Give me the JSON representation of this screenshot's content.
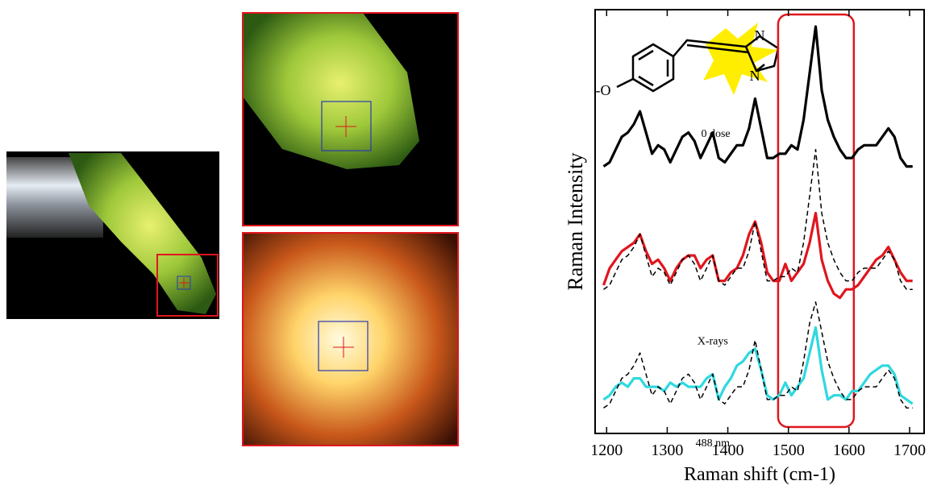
{
  "chart_data": {
    "type": "line",
    "ylabel": "Raman Intensity",
    "xlabel": "Raman shift (cm-1)",
    "xlim": [
      1181,
      1724
    ],
    "ylim": [
      0,
      100
    ],
    "xticks": [
      1200,
      1300,
      1400,
      1500,
      1600,
      1700
    ],
    "highlight_range": [
      1483,
      1608
    ],
    "highlight_color": "#e0161d",
    "structure_labels": [
      "N",
      "N",
      "-O"
    ],
    "x": [
      1195,
      1205,
      1215,
      1225,
      1235,
      1245,
      1255,
      1265,
      1275,
      1285,
      1295,
      1305,
      1315,
      1325,
      1335,
      1345,
      1355,
      1365,
      1375,
      1385,
      1395,
      1405,
      1415,
      1425,
      1435,
      1445,
      1455,
      1465,
      1475,
      1485,
      1495,
      1505,
      1515,
      1525,
      1535,
      1545,
      1555,
      1565,
      1575,
      1585,
      1595,
      1605,
      1615,
      1625,
      1635,
      1645,
      1655,
      1665,
      1675,
      1685,
      1695,
      1705
    ],
    "series": [
      {
        "name": "0 dose",
        "color": "#000000",
        "dashed": false,
        "values": [
          63,
          64,
          67,
          70,
          71,
          73,
          76,
          71,
          66,
          68,
          67,
          64,
          67,
          70,
          71,
          69,
          65,
          68,
          71,
          65,
          64,
          66,
          68,
          68,
          72,
          79,
          72,
          65,
          65,
          66,
          66,
          68,
          67,
          74,
          85,
          96,
          81,
          74,
          70,
          67,
          65,
          65,
          67,
          68,
          68,
          68,
          70,
          72,
          70,
          65,
          63,
          63
        ]
      },
      {
        "name": "X-rays",
        "color": "#e0161d",
        "dashed": false,
        "values": [
          35,
          39,
          41,
          43,
          44,
          45,
          47,
          43,
          40,
          41,
          39,
          36,
          39,
          41,
          42,
          42,
          39,
          41,
          42,
          36,
          36,
          38,
          39,
          42,
          47,
          50,
          45,
          38,
          36,
          36,
          40,
          36,
          38,
          40,
          45,
          52,
          41,
          36,
          33,
          32,
          34,
          34,
          35,
          37,
          39,
          41,
          42,
          44,
          41,
          38,
          36,
          36
        ]
      },
      {
        "color": "#000000",
        "dashed": true,
        "values": [
          34,
          35,
          38,
          41,
          42,
          44,
          47,
          42,
          37,
          39,
          38,
          35,
          38,
          41,
          42,
          40,
          36,
          39,
          42,
          36,
          35,
          37,
          39,
          39,
          43,
          50,
          43,
          36,
          36,
          37,
          37,
          39,
          38,
          45,
          56,
          67,
          52,
          45,
          41,
          38,
          36,
          36,
          38,
          39,
          39,
          39,
          41,
          43,
          41,
          36,
          34,
          34
        ]
      },
      {
        "name": "488 nm",
        "color": "#2fd8e0",
        "dashed": false,
        "values": [
          8,
          9,
          11,
          12,
          11,
          13,
          13,
          11,
          11,
          11,
          10,
          12,
          11,
          12,
          11,
          11,
          11,
          13,
          14,
          8,
          11,
          13,
          16,
          17,
          19,
          20,
          15,
          9,
          8,
          9,
          12,
          9,
          11,
          13,
          19,
          25,
          15,
          8,
          9,
          9,
          8,
          10,
          10,
          12,
          14,
          15,
          16,
          16,
          14,
          9,
          8,
          7
        ]
      },
      {
        "color": "#000000",
        "dashed": true,
        "values": [
          6,
          7,
          10,
          13,
          14,
          16,
          19,
          14,
          9,
          11,
          10,
          7,
          10,
          13,
          14,
          12,
          8,
          11,
          14,
          8,
          7,
          9,
          11,
          11,
          15,
          22,
          15,
          8,
          8,
          9,
          9,
          11,
          10,
          17,
          26,
          31,
          24,
          17,
          13,
          10,
          8,
          8,
          10,
          11,
          11,
          11,
          13,
          15,
          13,
          8,
          6,
          6
        ]
      }
    ]
  }
}
